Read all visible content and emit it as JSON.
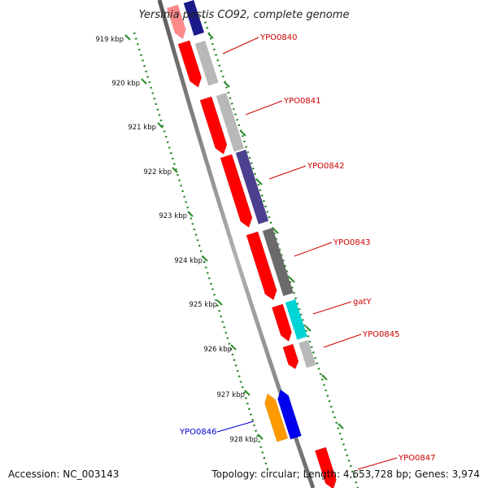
{
  "title": "Yersinia pestis CO92, complete genome",
  "footer": {
    "accession": "Accession: NC_003143",
    "topology": "Topology: circular; Length: 4,653,728 bp; Genes: 3,974"
  },
  "scale_ticks": [
    "919 kbp",
    "920 kbp",
    "921 kbp",
    "922 kbp",
    "923 kbp",
    "924 kbp",
    "925 kbp",
    "926 kbp",
    "927 kbp",
    "928 kbp"
  ],
  "genes": [
    {
      "label": "YPO0840",
      "color": "#cc0000"
    },
    {
      "label": "YPO0841",
      "color": "#cc0000"
    },
    {
      "label": "YPO0842",
      "color": "#cc0000"
    },
    {
      "label": "YPO0843",
      "color": "#cc0000"
    },
    {
      "label": "gatY",
      "color": "#cc0000"
    },
    {
      "label": "YPO0845",
      "color": "#cc0000"
    },
    {
      "label": "YPO0846",
      "color": "#0000cc"
    },
    {
      "label": "YPO0847",
      "color": "#cc0000"
    }
  ],
  "colors": {
    "forward_strand": "#ff0000",
    "reverse_strand": "#0000ee",
    "reverse_gene_alt": "#ff9900",
    "cog_gray_light": "#b8b8b8",
    "cog_purple": "#4b3f8f",
    "cog_gray_dark": "#6a6a6a",
    "cog_cyan": "#00d4d4",
    "cog_navy": "#1a1a8a",
    "backbone": "#888888",
    "ticks": "#228822"
  }
}
